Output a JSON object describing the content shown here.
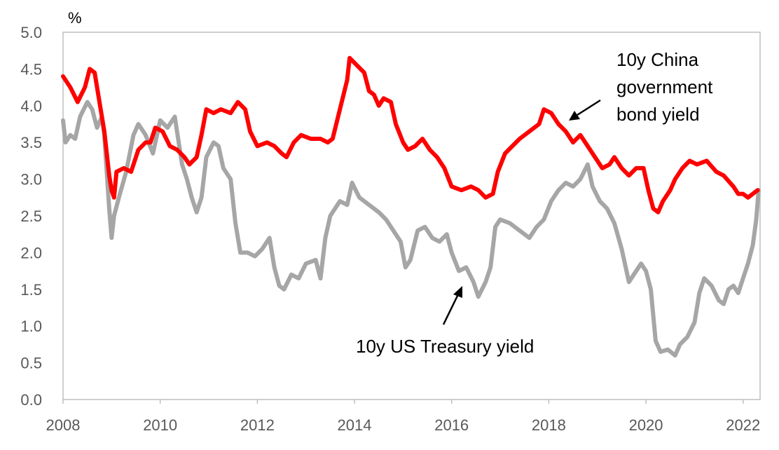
{
  "chart_data": {
    "type": "line",
    "ylabel": "%",
    "ylim": [
      0,
      5
    ],
    "xlim": [
      2008,
      2022.35
    ],
    "yticks": [
      "0.0",
      "0.5",
      "1.0",
      "1.5",
      "2.0",
      "2.5",
      "3.0",
      "3.5",
      "4.0",
      "4.5",
      "5.0"
    ],
    "xticks": [
      "2008",
      "2010",
      "2012",
      "2014",
      "2016",
      "2018",
      "2020",
      "2022"
    ],
    "grid": false,
    "legend": "none",
    "annotations": {
      "china": [
        "10y China",
        "government",
        "bond yield"
      ],
      "us": [
        "10y US Treasury yield"
      ]
    },
    "series": [
      {
        "key": "china",
        "color": "#ff0000",
        "points": [
          [
            2008.0,
            4.4
          ],
          [
            2008.15,
            4.25
          ],
          [
            2008.3,
            4.05
          ],
          [
            2008.45,
            4.25
          ],
          [
            2008.55,
            4.5
          ],
          [
            2008.65,
            4.45
          ],
          [
            2008.75,
            4.05
          ],
          [
            2008.85,
            3.65
          ],
          [
            2008.95,
            3.05
          ],
          [
            2009.0,
            2.85
          ],
          [
            2009.05,
            2.75
          ],
          [
            2009.1,
            3.1
          ],
          [
            2009.25,
            3.15
          ],
          [
            2009.4,
            3.1
          ],
          [
            2009.55,
            3.4
          ],
          [
            2009.7,
            3.5
          ],
          [
            2009.8,
            3.5
          ],
          [
            2009.9,
            3.7
          ],
          [
            2010.05,
            3.65
          ],
          [
            2010.2,
            3.45
          ],
          [
            2010.35,
            3.4
          ],
          [
            2010.5,
            3.3
          ],
          [
            2010.6,
            3.2
          ],
          [
            2010.75,
            3.3
          ],
          [
            2010.85,
            3.6
          ],
          [
            2010.95,
            3.95
          ],
          [
            2011.1,
            3.9
          ],
          [
            2011.25,
            3.95
          ],
          [
            2011.45,
            3.9
          ],
          [
            2011.6,
            4.05
          ],
          [
            2011.75,
            3.95
          ],
          [
            2011.85,
            3.65
          ],
          [
            2012.0,
            3.45
          ],
          [
            2012.2,
            3.5
          ],
          [
            2012.35,
            3.45
          ],
          [
            2012.5,
            3.35
          ],
          [
            2012.6,
            3.3
          ],
          [
            2012.75,
            3.5
          ],
          [
            2012.9,
            3.6
          ],
          [
            2013.1,
            3.55
          ],
          [
            2013.3,
            3.55
          ],
          [
            2013.45,
            3.5
          ],
          [
            2013.55,
            3.55
          ],
          [
            2013.7,
            3.95
          ],
          [
            2013.85,
            4.35
          ],
          [
            2013.9,
            4.65
          ],
          [
            2014.05,
            4.55
          ],
          [
            2014.2,
            4.45
          ],
          [
            2014.3,
            4.2
          ],
          [
            2014.4,
            4.15
          ],
          [
            2014.5,
            4.0
          ],
          [
            2014.6,
            4.1
          ],
          [
            2014.75,
            4.05
          ],
          [
            2014.85,
            3.75
          ],
          [
            2015.0,
            3.5
          ],
          [
            2015.1,
            3.4
          ],
          [
            2015.25,
            3.45
          ],
          [
            2015.4,
            3.55
          ],
          [
            2015.55,
            3.4
          ],
          [
            2015.7,
            3.3
          ],
          [
            2015.85,
            3.15
          ],
          [
            2016.0,
            2.9
          ],
          [
            2016.2,
            2.85
          ],
          [
            2016.4,
            2.9
          ],
          [
            2016.55,
            2.85
          ],
          [
            2016.7,
            2.75
          ],
          [
            2016.85,
            2.8
          ],
          [
            2016.95,
            3.1
          ],
          [
            2017.1,
            3.35
          ],
          [
            2017.25,
            3.45
          ],
          [
            2017.4,
            3.55
          ],
          [
            2017.6,
            3.65
          ],
          [
            2017.8,
            3.75
          ],
          [
            2017.9,
            3.95
          ],
          [
            2018.05,
            3.9
          ],
          [
            2018.2,
            3.75
          ],
          [
            2018.35,
            3.65
          ],
          [
            2018.5,
            3.5
          ],
          [
            2018.65,
            3.6
          ],
          [
            2018.8,
            3.45
          ],
          [
            2018.95,
            3.3
          ],
          [
            2019.1,
            3.15
          ],
          [
            2019.25,
            3.2
          ],
          [
            2019.35,
            3.3
          ],
          [
            2019.5,
            3.15
          ],
          [
            2019.65,
            3.05
          ],
          [
            2019.8,
            3.15
          ],
          [
            2019.95,
            3.15
          ],
          [
            2020.05,
            2.85
          ],
          [
            2020.15,
            2.6
          ],
          [
            2020.25,
            2.55
          ],
          [
            2020.35,
            2.7
          ],
          [
            2020.5,
            2.85
          ],
          [
            2020.6,
            3.0
          ],
          [
            2020.75,
            3.15
          ],
          [
            2020.9,
            3.25
          ],
          [
            2021.05,
            3.2
          ],
          [
            2021.25,
            3.25
          ],
          [
            2021.45,
            3.1
          ],
          [
            2021.6,
            3.05
          ],
          [
            2021.8,
            2.9
          ],
          [
            2021.9,
            2.8
          ],
          [
            2022.0,
            2.8
          ],
          [
            2022.1,
            2.75
          ],
          [
            2022.2,
            2.8
          ],
          [
            2022.3,
            2.85
          ]
        ]
      },
      {
        "key": "us",
        "color": "#a6a6a6",
        "points": [
          [
            2008.0,
            3.8
          ],
          [
            2008.05,
            3.5
          ],
          [
            2008.15,
            3.6
          ],
          [
            2008.25,
            3.55
          ],
          [
            2008.35,
            3.85
          ],
          [
            2008.5,
            4.05
          ],
          [
            2008.6,
            3.95
          ],
          [
            2008.7,
            3.7
          ],
          [
            2008.8,
            3.85
          ],
          [
            2008.85,
            3.6
          ],
          [
            2008.9,
            3.1
          ],
          [
            2008.95,
            2.6
          ],
          [
            2009.0,
            2.2
          ],
          [
            2009.05,
            2.5
          ],
          [
            2009.15,
            2.75
          ],
          [
            2009.3,
            3.1
          ],
          [
            2009.45,
            3.6
          ],
          [
            2009.55,
            3.75
          ],
          [
            2009.7,
            3.6
          ],
          [
            2009.85,
            3.35
          ],
          [
            2010.0,
            3.8
          ],
          [
            2010.15,
            3.7
          ],
          [
            2010.3,
            3.85
          ],
          [
            2010.45,
            3.2
          ],
          [
            2010.55,
            3.0
          ],
          [
            2010.65,
            2.75
          ],
          [
            2010.75,
            2.55
          ],
          [
            2010.85,
            2.75
          ],
          [
            2010.95,
            3.3
          ],
          [
            2011.1,
            3.5
          ],
          [
            2011.2,
            3.45
          ],
          [
            2011.3,
            3.15
          ],
          [
            2011.45,
            3.0
          ],
          [
            2011.55,
            2.4
          ],
          [
            2011.65,
            2.0
          ],
          [
            2011.8,
            2.0
          ],
          [
            2011.95,
            1.95
          ],
          [
            2012.1,
            2.05
          ],
          [
            2012.25,
            2.2
          ],
          [
            2012.35,
            1.8
          ],
          [
            2012.45,
            1.55
          ],
          [
            2012.55,
            1.5
          ],
          [
            2012.7,
            1.7
          ],
          [
            2012.85,
            1.65
          ],
          [
            2013.0,
            1.85
          ],
          [
            2013.2,
            1.9
          ],
          [
            2013.3,
            1.65
          ],
          [
            2013.4,
            2.2
          ],
          [
            2013.5,
            2.5
          ],
          [
            2013.7,
            2.7
          ],
          [
            2013.85,
            2.65
          ],
          [
            2013.95,
            2.95
          ],
          [
            2014.1,
            2.75
          ],
          [
            2014.3,
            2.65
          ],
          [
            2014.5,
            2.55
          ],
          [
            2014.65,
            2.45
          ],
          [
            2014.8,
            2.3
          ],
          [
            2014.95,
            2.15
          ],
          [
            2015.05,
            1.8
          ],
          [
            2015.15,
            1.9
          ],
          [
            2015.3,
            2.3
          ],
          [
            2015.45,
            2.35
          ],
          [
            2015.6,
            2.2
          ],
          [
            2015.75,
            2.15
          ],
          [
            2015.9,
            2.25
          ],
          [
            2016.0,
            2.0
          ],
          [
            2016.15,
            1.75
          ],
          [
            2016.3,
            1.8
          ],
          [
            2016.45,
            1.6
          ],
          [
            2016.55,
            1.4
          ],
          [
            2016.7,
            1.6
          ],
          [
            2016.8,
            1.8
          ],
          [
            2016.9,
            2.35
          ],
          [
            2017.0,
            2.45
          ],
          [
            2017.2,
            2.4
          ],
          [
            2017.4,
            2.3
          ],
          [
            2017.6,
            2.2
          ],
          [
            2017.75,
            2.35
          ],
          [
            2017.9,
            2.45
          ],
          [
            2018.05,
            2.7
          ],
          [
            2018.2,
            2.85
          ],
          [
            2018.35,
            2.95
          ],
          [
            2018.5,
            2.9
          ],
          [
            2018.65,
            3.0
          ],
          [
            2018.8,
            3.2
          ],
          [
            2018.9,
            2.9
          ],
          [
            2019.05,
            2.7
          ],
          [
            2019.2,
            2.6
          ],
          [
            2019.35,
            2.4
          ],
          [
            2019.5,
            2.05
          ],
          [
            2019.65,
            1.6
          ],
          [
            2019.75,
            1.7
          ],
          [
            2019.9,
            1.85
          ],
          [
            2020.0,
            1.75
          ],
          [
            2020.1,
            1.5
          ],
          [
            2020.2,
            0.8
          ],
          [
            2020.3,
            0.65
          ],
          [
            2020.45,
            0.68
          ],
          [
            2020.6,
            0.6
          ],
          [
            2020.7,
            0.75
          ],
          [
            2020.85,
            0.85
          ],
          [
            2021.0,
            1.05
          ],
          [
            2021.1,
            1.45
          ],
          [
            2021.2,
            1.65
          ],
          [
            2021.35,
            1.55
          ],
          [
            2021.5,
            1.35
          ],
          [
            2021.6,
            1.3
          ],
          [
            2021.7,
            1.5
          ],
          [
            2021.8,
            1.55
          ],
          [
            2021.9,
            1.45
          ],
          [
            2022.0,
            1.65
          ],
          [
            2022.1,
            1.85
          ],
          [
            2022.2,
            2.1
          ],
          [
            2022.27,
            2.45
          ],
          [
            2022.32,
            2.85
          ]
        ]
      }
    ]
  }
}
